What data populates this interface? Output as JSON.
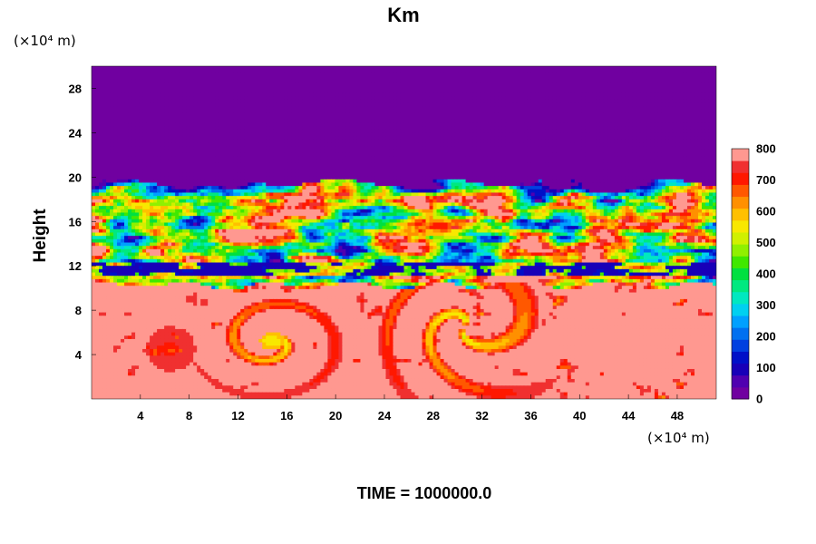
{
  "chart_data": {
    "type": "heatmap",
    "title": "Km",
    "ylabel": "Height",
    "xlabel": "",
    "x_unit": "(×10⁴ m)",
    "y_unit": "(×10⁴ m)",
    "x_ticks": [
      4,
      8,
      12,
      16,
      20,
      24,
      28,
      32,
      36,
      40,
      44,
      48
    ],
    "y_ticks": [
      4,
      8,
      12,
      16,
      20,
      24,
      28
    ],
    "xlim": [
      0,
      51.2
    ],
    "ylim": [
      0,
      30
    ],
    "colorbar": {
      "ticks": [
        0,
        100,
        200,
        300,
        400,
        500,
        600,
        700,
        800
      ],
      "range": [
        0,
        800
      ],
      "levels": [
        {
          "value": 0,
          "color": "#7000a0"
        },
        {
          "value": 40,
          "color": "#5000b0"
        },
        {
          "value": 80,
          "color": "#1800b8"
        },
        {
          "value": 120,
          "color": "#0010c8"
        },
        {
          "value": 160,
          "color": "#0040e0"
        },
        {
          "value": 200,
          "color": "#0070f0"
        },
        {
          "value": 240,
          "color": "#00a0ff"
        },
        {
          "value": 280,
          "color": "#00d0f0"
        },
        {
          "value": 320,
          "color": "#00e8c0"
        },
        {
          "value": 360,
          "color": "#00e880"
        },
        {
          "value": 400,
          "color": "#00e040"
        },
        {
          "value": 440,
          "color": "#40e800"
        },
        {
          "value": 480,
          "color": "#90f000"
        },
        {
          "value": 520,
          "color": "#d0f000"
        },
        {
          "value": 560,
          "color": "#f8e800"
        },
        {
          "value": 600,
          "color": "#ffc000"
        },
        {
          "value": 640,
          "color": "#ff9000"
        },
        {
          "value": 680,
          "color": "#ff5800"
        },
        {
          "value": 720,
          "color": "#ff1800"
        },
        {
          "value": 760,
          "color": "#f03030"
        },
        {
          "value": 800,
          "color": "#ff9890"
        }
      ]
    },
    "regions": [
      {
        "name": "upper uniform layer",
        "y_range": [
          19.5,
          30
        ],
        "value": 0
      },
      {
        "name": "turbulent band",
        "y_range": [
          10.2,
          19.5
        ],
        "value": "mixed 0-800"
      },
      {
        "name": "stable thin layer",
        "y_range": [
          11.2,
          12.2
        ],
        "value": 60
      },
      {
        "name": "lower layer",
        "y_range": [
          0,
          10.2
        ],
        "value": 800
      }
    ],
    "vortex_centers": [
      {
        "x": 14.8,
        "y": 5.2,
        "peak_value": 540
      },
      {
        "x": 6.5,
        "y": 4.5,
        "peak_value": 720
      },
      {
        "x": 30.5,
        "y": 6.5,
        "peak_value": 560
      }
    ]
  },
  "footer": {
    "time_label": "TIME = 1000000.0"
  }
}
